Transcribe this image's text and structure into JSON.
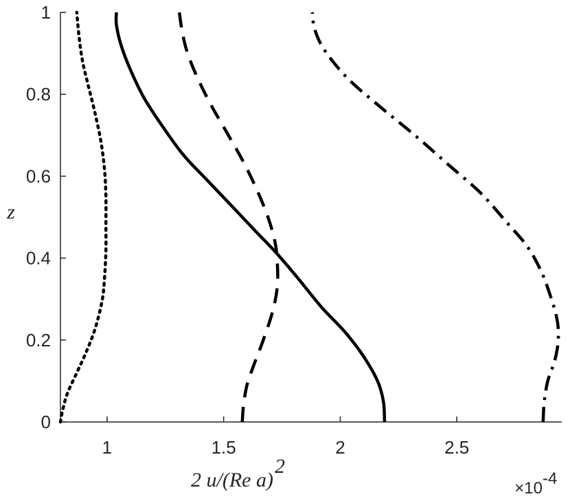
{
  "chart_data": {
    "type": "line",
    "xlabel": "2 u/(Re a)",
    "xlabel_superscript": "2",
    "ylabel": "z",
    "x_multiplier": "×10",
    "x_multiplier_exponent": "-4",
    "xlim": [
      0.8,
      2.95
    ],
    "ylim": [
      0,
      1
    ],
    "xticks": [
      1,
      1.5,
      2,
      2.5
    ],
    "xtick_labels": [
      "1",
      "1.5",
      "2",
      "2.5"
    ],
    "yticks": [
      0,
      0.2,
      0.4,
      0.6,
      0.8,
      1
    ],
    "ytick_labels": [
      "0",
      "0.2",
      "0.4",
      "0.6",
      "0.8",
      "1"
    ],
    "grid": false,
    "legend": "none",
    "series": [
      {
        "style": "dotted",
        "points": [
          [
            0.8,
            0.0
          ],
          [
            0.81,
            0.03
          ],
          [
            0.83,
            0.07
          ],
          [
            0.87,
            0.12
          ],
          [
            0.91,
            0.17
          ],
          [
            0.95,
            0.23
          ],
          [
            0.98,
            0.3
          ],
          [
            0.99,
            0.36
          ],
          [
            0.995,
            0.42
          ],
          [
            0.995,
            0.48
          ],
          [
            0.995,
            0.55
          ],
          [
            0.99,
            0.61
          ],
          [
            0.975,
            0.68
          ],
          [
            0.95,
            0.75
          ],
          [
            0.92,
            0.82
          ],
          [
            0.895,
            0.88
          ],
          [
            0.88,
            0.94
          ],
          [
            0.87,
            1.0
          ]
        ]
      },
      {
        "style": "solid",
        "points": [
          [
            2.19,
            0.0
          ],
          [
            2.185,
            0.05
          ],
          [
            2.16,
            0.1
          ],
          [
            2.1,
            0.16
          ],
          [
            2.02,
            0.22
          ],
          [
            1.92,
            0.28
          ],
          [
            1.82,
            0.35
          ],
          [
            1.73,
            0.41
          ],
          [
            1.63,
            0.47
          ],
          [
            1.53,
            0.53
          ],
          [
            1.43,
            0.59
          ],
          [
            1.33,
            0.65
          ],
          [
            1.24,
            0.72
          ],
          [
            1.16,
            0.79
          ],
          [
            1.1,
            0.86
          ],
          [
            1.06,
            0.92
          ],
          [
            1.04,
            0.97
          ],
          [
            1.04,
            1.0
          ]
        ]
      },
      {
        "style": "dashed",
        "points": [
          [
            1.58,
            0.0
          ],
          [
            1.585,
            0.04
          ],
          [
            1.6,
            0.09
          ],
          [
            1.63,
            0.14
          ],
          [
            1.67,
            0.2
          ],
          [
            1.71,
            0.27
          ],
          [
            1.73,
            0.33
          ],
          [
            1.73,
            0.39
          ],
          [
            1.72,
            0.44
          ],
          [
            1.69,
            0.5
          ],
          [
            1.64,
            0.57
          ],
          [
            1.58,
            0.64
          ],
          [
            1.51,
            0.71
          ],
          [
            1.44,
            0.78
          ],
          [
            1.38,
            0.85
          ],
          [
            1.34,
            0.91
          ],
          [
            1.32,
            0.96
          ],
          [
            1.31,
            1.0
          ]
        ]
      },
      {
        "style": "dashdot",
        "points": [
          [
            2.87,
            0.0
          ],
          [
            2.875,
            0.05
          ],
          [
            2.89,
            0.1
          ],
          [
            2.92,
            0.15
          ],
          [
            2.935,
            0.2
          ],
          [
            2.93,
            0.25
          ],
          [
            2.9,
            0.31
          ],
          [
            2.86,
            0.37
          ],
          [
            2.8,
            0.43
          ],
          [
            2.71,
            0.49
          ],
          [
            2.6,
            0.56
          ],
          [
            2.46,
            0.63
          ],
          [
            2.32,
            0.7
          ],
          [
            2.17,
            0.77
          ],
          [
            2.03,
            0.84
          ],
          [
            1.93,
            0.91
          ],
          [
            1.89,
            0.96
          ],
          [
            1.88,
            1.0
          ]
        ]
      }
    ]
  }
}
